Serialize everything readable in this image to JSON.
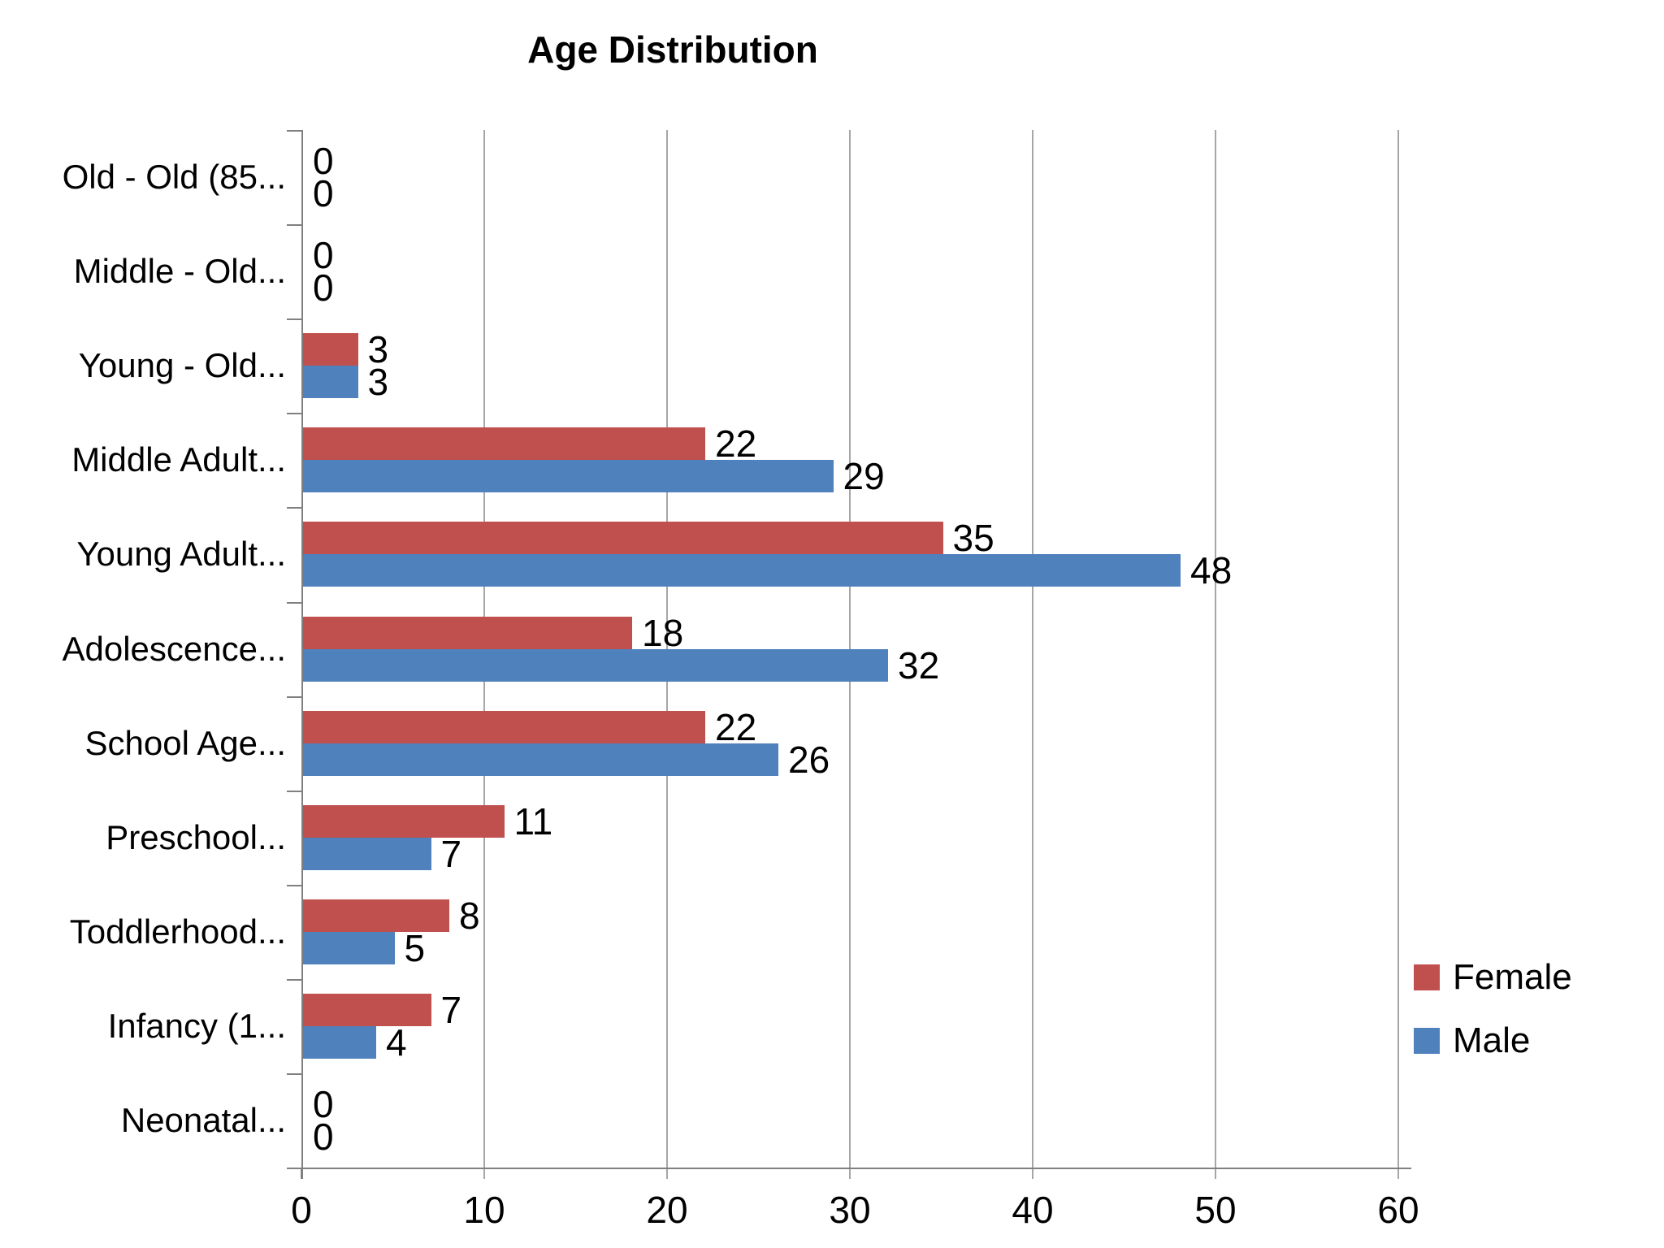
{
  "title": "Age Distribution",
  "colors": {
    "female": "#C0504D",
    "male": "#4F81BD",
    "gridline": "#A6A6A6",
    "axis": "#808080",
    "text": "#000000",
    "background": "#FFFFFF"
  },
  "legend": {
    "position": "right",
    "entries": [
      {
        "label": "Female",
        "color_key": "female"
      },
      {
        "label": "Male",
        "color_key": "male"
      }
    ]
  },
  "chart_data": {
    "type": "bar",
    "orientation": "horizontal",
    "title": "Age Distribution",
    "categories": [
      "Old - Old (85...",
      "Middle - Old...",
      "Young - Old...",
      "Middle Adult...",
      "Young Adult...",
      "Adolescence...",
      "School Age...",
      "Preschool...",
      "Toddlerhood...",
      "Infancy (1...",
      "Neonatal..."
    ],
    "series": [
      {
        "name": "Female",
        "values": [
          0,
          0,
          3,
          22,
          35,
          18,
          22,
          11,
          8,
          7,
          0
        ]
      },
      {
        "name": "Male",
        "values": [
          0,
          0,
          3,
          29,
          48,
          32,
          26,
          7,
          5,
          4,
          0
        ]
      }
    ],
    "data_labels": true,
    "x_ticks": [
      0,
      10,
      20,
      30,
      40,
      50,
      60
    ],
    "xlim": [
      0,
      60
    ],
    "grid": true,
    "legend_position": "right"
  }
}
